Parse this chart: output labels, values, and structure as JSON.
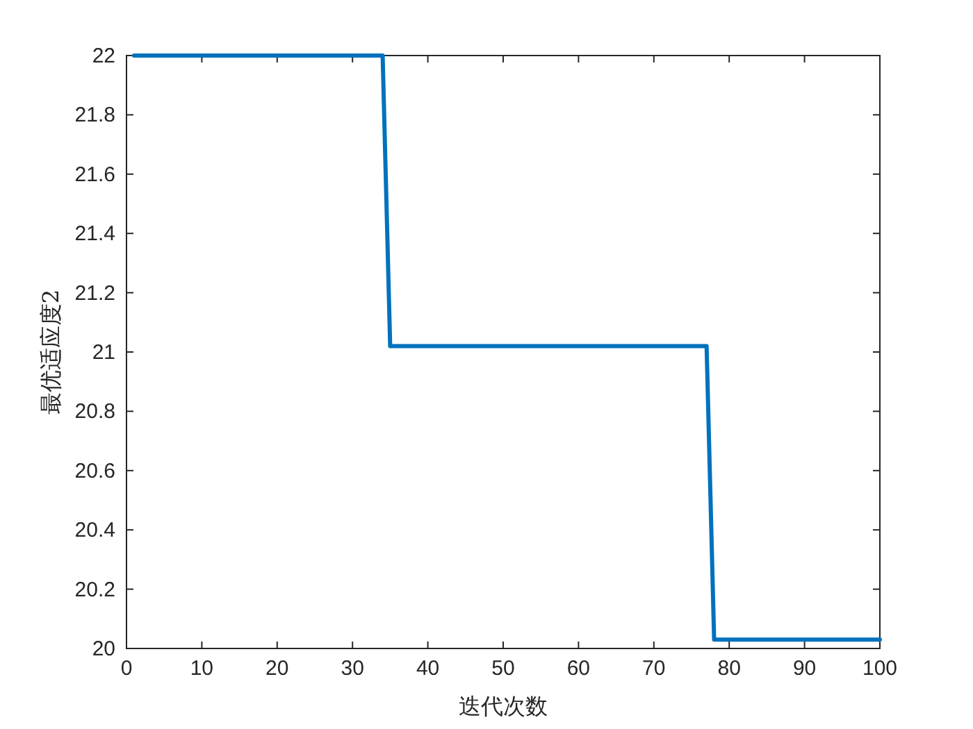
{
  "chart_data": {
    "type": "line",
    "xlabel": "迭代次数",
    "ylabel": "最优适应度2",
    "x": [
      1,
      34,
      35,
      77,
      78,
      100
    ],
    "series": [
      {
        "color": "#0072bd",
        "values": [
          22,
          22,
          21.02,
          21.02,
          20.03,
          20.03
        ]
      }
    ],
    "xlim": [
      0,
      100
    ],
    "ylim": [
      20,
      22
    ],
    "xticks": [
      0,
      10,
      20,
      30,
      40,
      50,
      60,
      70,
      80,
      90,
      100
    ],
    "yticks": [
      20,
      20.2,
      20.4,
      20.6,
      20.8,
      21,
      21.2,
      21.4,
      21.6,
      21.8,
      22
    ]
  }
}
